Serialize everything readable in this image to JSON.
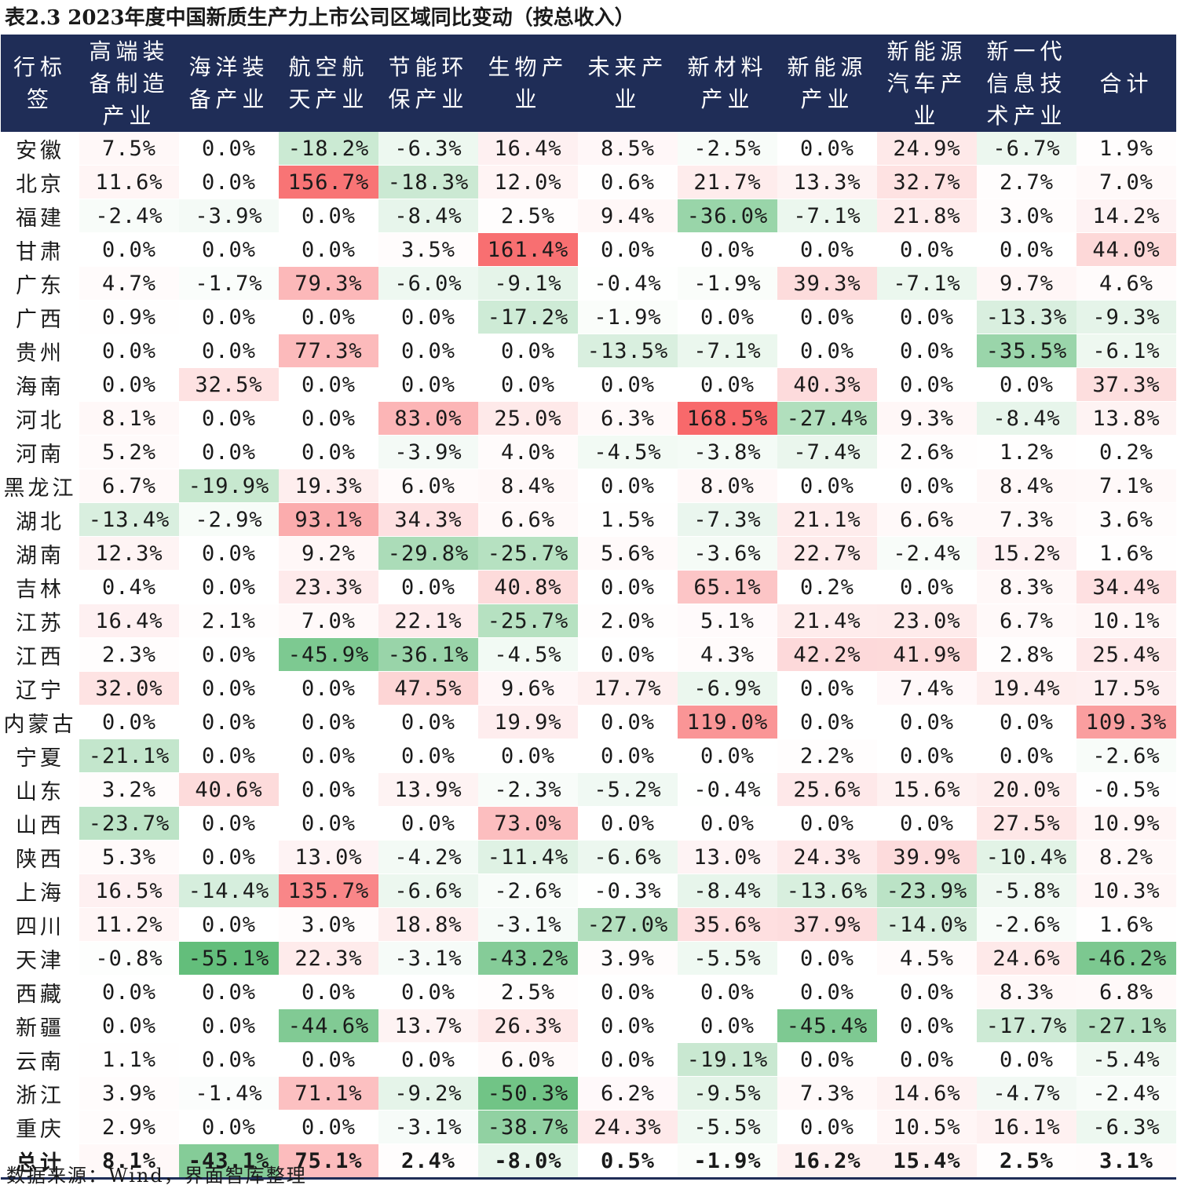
{
  "title": "表2.3 2023年度中国新质生产力上市公司区域同比变动（按总收入）",
  "source": "数据来源：Wind，界面智库整理",
  "columns": [
    "行标签",
    "高端装备制造产业",
    "海洋装备产业",
    "航空航天产业",
    "节能环保产业",
    "生物产业",
    "未来产业",
    "新材料产业",
    "新能源产业",
    "新能源汽车产业",
    "新一代信息技术产业",
    "合计"
  ],
  "rows": [
    {
      "region": "安徽",
      "values": [
        "7.5%",
        "0.0%",
        "-18.2%",
        "-6.3%",
        "16.4%",
        "8.5%",
        "-2.5%",
        "0.0%",
        "24.9%",
        "-6.7%",
        "1.9%"
      ]
    },
    {
      "region": "北京",
      "values": [
        "11.6%",
        "0.0%",
        "156.7%",
        "-18.3%",
        "12.0%",
        "0.6%",
        "21.7%",
        "13.3%",
        "32.7%",
        "2.7%",
        "7.0%"
      ]
    },
    {
      "region": "福建",
      "values": [
        "-2.4%",
        "-3.9%",
        "0.0%",
        "-8.4%",
        "2.5%",
        "9.4%",
        "-36.0%",
        "-7.1%",
        "21.8%",
        "3.0%",
        "14.2%"
      ]
    },
    {
      "region": "甘肃",
      "values": [
        "0.0%",
        "0.0%",
        "0.0%",
        "3.5%",
        "161.4%",
        "0.0%",
        "0.0%",
        "0.0%",
        "0.0%",
        "0.0%",
        "44.0%"
      ]
    },
    {
      "region": "广东",
      "values": [
        "4.7%",
        "-1.7%",
        "79.3%",
        "-6.0%",
        "-9.1%",
        "-0.4%",
        "-1.9%",
        "39.3%",
        "-7.1%",
        "9.7%",
        "4.6%"
      ]
    },
    {
      "region": "广西",
      "values": [
        "0.9%",
        "0.0%",
        "0.0%",
        "0.0%",
        "-17.2%",
        "-1.9%",
        "0.0%",
        "0.0%",
        "0.0%",
        "-13.3%",
        "-9.3%"
      ]
    },
    {
      "region": "贵州",
      "values": [
        "0.0%",
        "0.0%",
        "77.3%",
        "0.0%",
        "0.0%",
        "-13.5%",
        "-7.1%",
        "0.0%",
        "0.0%",
        "-35.5%",
        "-6.1%"
      ]
    },
    {
      "region": "海南",
      "values": [
        "0.0%",
        "32.5%",
        "0.0%",
        "0.0%",
        "0.0%",
        "0.0%",
        "0.0%",
        "40.3%",
        "0.0%",
        "0.0%",
        "37.3%"
      ]
    },
    {
      "region": "河北",
      "values": [
        "8.1%",
        "0.0%",
        "0.0%",
        "83.0%",
        "25.0%",
        "6.3%",
        "168.5%",
        "-27.4%",
        "9.3%",
        "-8.4%",
        "13.8%"
      ]
    },
    {
      "region": "河南",
      "values": [
        "5.2%",
        "0.0%",
        "0.0%",
        "-3.9%",
        "4.0%",
        "-4.5%",
        "-3.8%",
        "-7.4%",
        "2.6%",
        "1.2%",
        "0.2%"
      ]
    },
    {
      "region": "黑龙江",
      "values": [
        "6.7%",
        "-19.9%",
        "19.3%",
        "6.0%",
        "8.4%",
        "0.0%",
        "8.0%",
        "0.0%",
        "0.0%",
        "8.4%",
        "7.1%"
      ]
    },
    {
      "region": "湖北",
      "values": [
        "-13.4%",
        "-2.9%",
        "93.1%",
        "34.3%",
        "6.6%",
        "1.5%",
        "-7.3%",
        "21.1%",
        "6.6%",
        "7.3%",
        "3.6%"
      ]
    },
    {
      "region": "湖南",
      "values": [
        "12.3%",
        "0.0%",
        "9.2%",
        "-29.8%",
        "-25.7%",
        "5.6%",
        "-3.6%",
        "22.7%",
        "-2.4%",
        "15.2%",
        "1.6%"
      ]
    },
    {
      "region": "吉林",
      "values": [
        "0.4%",
        "0.0%",
        "23.3%",
        "0.0%",
        "40.8%",
        "0.0%",
        "65.1%",
        "0.2%",
        "0.0%",
        "8.3%",
        "34.4%"
      ]
    },
    {
      "region": "江苏",
      "values": [
        "16.4%",
        "2.1%",
        "7.0%",
        "22.1%",
        "-25.7%",
        "2.0%",
        "5.1%",
        "21.4%",
        "23.0%",
        "6.7%",
        "10.1%"
      ]
    },
    {
      "region": "江西",
      "values": [
        "2.3%",
        "0.0%",
        "-45.9%",
        "-36.1%",
        "-4.5%",
        "0.0%",
        "4.3%",
        "42.2%",
        "41.9%",
        "2.8%",
        "25.4%"
      ]
    },
    {
      "region": "辽宁",
      "values": [
        "32.0%",
        "0.0%",
        "0.0%",
        "47.5%",
        "9.6%",
        "17.7%",
        "-6.9%",
        "0.0%",
        "7.4%",
        "19.4%",
        "17.5%"
      ]
    },
    {
      "region": "内蒙古",
      "values": [
        "0.0%",
        "0.0%",
        "0.0%",
        "0.0%",
        "19.9%",
        "0.0%",
        "119.0%",
        "0.0%",
        "0.0%",
        "0.0%",
        "109.3%"
      ]
    },
    {
      "region": "宁夏",
      "values": [
        "-21.1%",
        "0.0%",
        "0.0%",
        "0.0%",
        "0.0%",
        "0.0%",
        "0.0%",
        "2.2%",
        "0.0%",
        "0.0%",
        "-2.6%"
      ]
    },
    {
      "region": "山东",
      "values": [
        "3.2%",
        "40.6%",
        "0.0%",
        "13.9%",
        "-2.3%",
        "-5.2%",
        "-0.4%",
        "25.6%",
        "15.6%",
        "20.0%",
        "-0.5%"
      ]
    },
    {
      "region": "山西",
      "values": [
        "-23.7%",
        "0.0%",
        "0.0%",
        "0.0%",
        "73.0%",
        "0.0%",
        "0.0%",
        "0.0%",
        "0.0%",
        "27.5%",
        "10.9%"
      ]
    },
    {
      "region": "陕西",
      "values": [
        "5.3%",
        "0.0%",
        "13.0%",
        "-4.2%",
        "-11.4%",
        "-6.6%",
        "13.0%",
        "24.3%",
        "39.9%",
        "-10.4%",
        "8.2%"
      ]
    },
    {
      "region": "上海",
      "values": [
        "16.5%",
        "-14.4%",
        "135.7%",
        "-6.6%",
        "-2.6%",
        "-0.3%",
        "-8.4%",
        "-13.6%",
        "-23.9%",
        "-5.8%",
        "10.3%"
      ]
    },
    {
      "region": "四川",
      "values": [
        "11.2%",
        "0.0%",
        "3.0%",
        "18.8%",
        "-3.1%",
        "-27.0%",
        "35.6%",
        "37.9%",
        "-14.0%",
        "-2.6%",
        "1.6%"
      ]
    },
    {
      "region": "天津",
      "values": [
        "-0.8%",
        "-55.1%",
        "22.3%",
        "-3.1%",
        "-43.2%",
        "3.9%",
        "-5.5%",
        "0.0%",
        "4.5%",
        "24.6%",
        "-46.2%"
      ]
    },
    {
      "region": "西藏",
      "values": [
        "0.0%",
        "0.0%",
        "0.0%",
        "0.0%",
        "2.5%",
        "0.0%",
        "0.0%",
        "0.0%",
        "0.0%",
        "8.3%",
        "6.8%"
      ]
    },
    {
      "region": "新疆",
      "values": [
        "0.0%",
        "0.0%",
        "-44.6%",
        "13.7%",
        "26.3%",
        "0.0%",
        "0.0%",
        "-45.4%",
        "0.0%",
        "-17.7%",
        "-27.1%"
      ]
    },
    {
      "region": "云南",
      "values": [
        "1.1%",
        "0.0%",
        "0.0%",
        "0.0%",
        "6.0%",
        "0.0%",
        "-19.1%",
        "0.0%",
        "0.0%",
        "0.0%",
        "-5.4%"
      ]
    },
    {
      "region": "浙江",
      "values": [
        "3.9%",
        "-1.4%",
        "71.1%",
        "-9.2%",
        "-50.3%",
        "6.2%",
        "-9.5%",
        "7.3%",
        "14.6%",
        "-4.7%",
        "-2.4%"
      ]
    },
    {
      "region": "重庆",
      "values": [
        "2.9%",
        "0.0%",
        "0.0%",
        "-3.1%",
        "-38.7%",
        "24.3%",
        "-5.5%",
        "0.0%",
        "10.5%",
        "16.1%",
        "-6.3%"
      ]
    },
    {
      "region": "总计",
      "values": [
        "8.1%",
        "-43.1%",
        "75.1%",
        "2.4%",
        "-8.0%",
        "0.5%",
        "-1.9%",
        "16.2%",
        "15.4%",
        "2.5%",
        "3.1%"
      ]
    }
  ],
  "colors": {
    "header_bg": "#1f2d57",
    "header_text": "#ffffff",
    "positive": "#f8696b",
    "negative": "#63be7b",
    "neutral": "#ffffff"
  }
}
